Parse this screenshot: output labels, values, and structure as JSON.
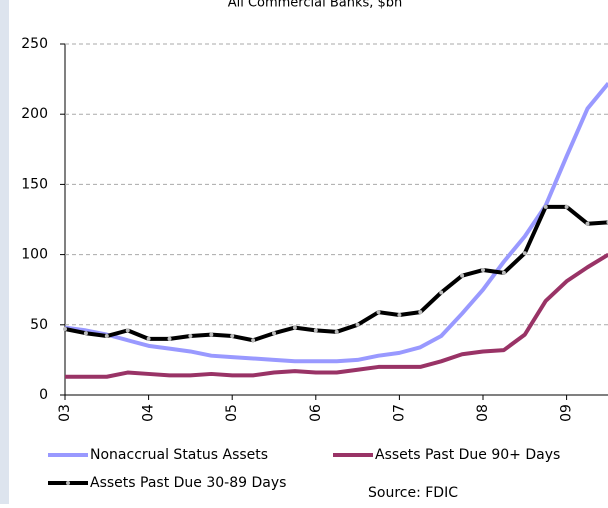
{
  "chart_data": {
    "type": "line",
    "title": "All Commercial Banks, $bn",
    "categories": [
      "03",
      null,
      null,
      null,
      "04",
      null,
      null,
      null,
      "05",
      null,
      null,
      null,
      "06",
      null,
      null,
      null,
      "07",
      null,
      null,
      null,
      "08",
      null,
      null,
      null,
      "09",
      null,
      null
    ],
    "series": [
      {
        "name": "Nonaccrual Status Assets",
        "color": "#9999ff",
        "values": [
          48,
          46,
          43,
          39,
          35,
          33,
          31,
          28,
          27,
          26,
          25,
          24,
          24,
          24,
          25,
          28,
          30,
          34,
          42,
          58,
          75,
          95,
          113,
          135,
          170,
          204,
          222
        ]
      },
      {
        "name": "Assets Past Due 90+ Days",
        "color": "#993366",
        "values": [
          13,
          13,
          13,
          16,
          15,
          14,
          14,
          15,
          14,
          14,
          16,
          17,
          16,
          16,
          18,
          20,
          20,
          20,
          24,
          29,
          31,
          32,
          43,
          67,
          81,
          91,
          100
        ]
      },
      {
        "name": "Assets Past Due 30-89 Days",
        "color": "#000000",
        "marker": true,
        "values": [
          47,
          44,
          42,
          46,
          40,
          40,
          42,
          43,
          42,
          39,
          44,
          48,
          46,
          45,
          50,
          59,
          57,
          59,
          73,
          85,
          89,
          87,
          101,
          134,
          134,
          122,
          123
        ]
      }
    ],
    "ylim": [
      0,
      250
    ],
    "yticks": [
      0,
      50,
      100,
      150,
      200,
      250
    ],
    "grid": true,
    "source": "Source: FDIC"
  }
}
